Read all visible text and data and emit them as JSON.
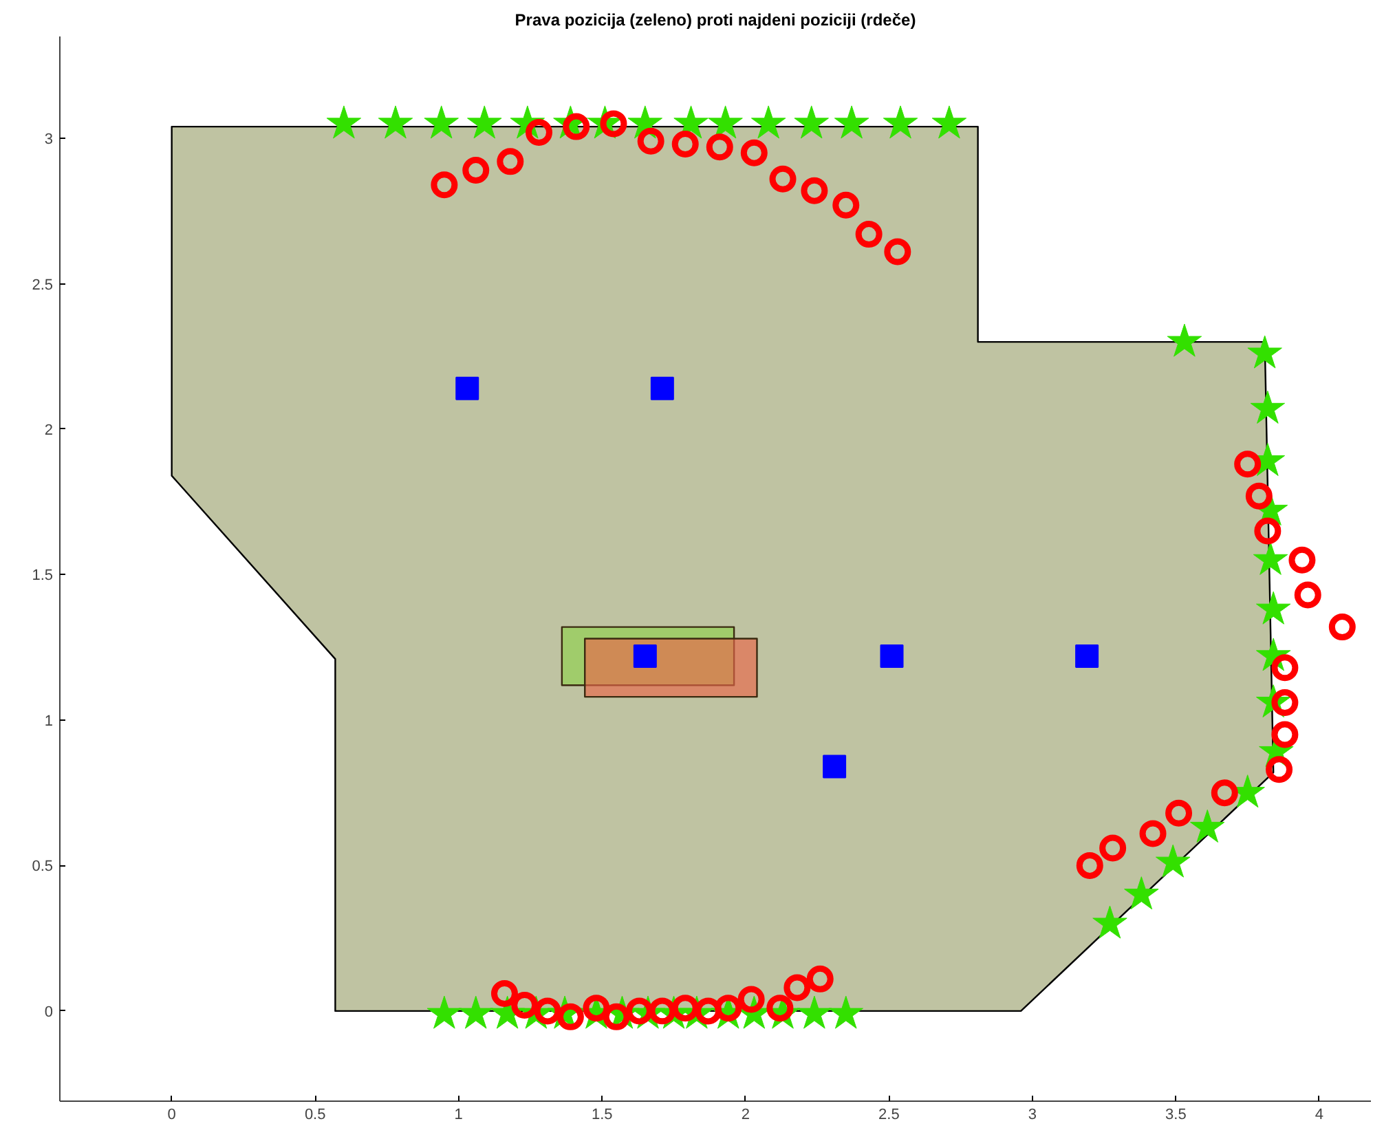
{
  "chart_data": {
    "type": "scatter",
    "title": "Prava pozicija (zeleno) proti najdeni poziciji (rdeče)",
    "xlim": [
      -0.39,
      4.18
    ],
    "ylim": [
      -0.31,
      3.35
    ],
    "xticks": [
      0,
      0.5,
      1,
      1.5,
      2,
      2.5,
      3,
      3.5,
      4
    ],
    "yticks": [
      0,
      0.5,
      1,
      1.5,
      2,
      2.5,
      3
    ],
    "grid": false,
    "series": [
      {
        "type": "area",
        "color": "#bfc3a2",
        "x": [
          0,
          2.81,
          2.81,
          3.81,
          3.84,
          2.96,
          0.57,
          0.57,
          0
        ],
        "values": [
          3.04,
          3.04,
          2.3,
          2.3,
          0.82,
          0,
          0,
          1.21,
          1.84
        ]
      },
      {
        "type": "area",
        "color": "#8fd14f",
        "x": [
          1.36,
          1.96,
          1.96,
          1.36
        ],
        "values": [
          1.32,
          1.32,
          1.12,
          1.12
        ]
      },
      {
        "type": "area",
        "color": "#e8674a",
        "x": [
          1.44,
          2.04,
          2.04,
          1.44
        ],
        "values": [
          1.28,
          1.28,
          1.08,
          1.08
        ]
      },
      {
        "type": "scatter",
        "marker": "square",
        "color": "#0000ff",
        "x": [
          1.03,
          1.71,
          1.65,
          2.51,
          3.19,
          2.31
        ],
        "values": [
          2.14,
          2.14,
          1.22,
          1.22,
          1.22,
          0.84
        ]
      },
      {
        "type": "scatter",
        "marker": "star",
        "color": "#33e000",
        "x": [
          0.6,
          0.78,
          0.94,
          1.09,
          1.24,
          1.39,
          1.51,
          1.65,
          1.81,
          1.93,
          2.08,
          2.23,
          2.37,
          2.54,
          2.71,
          3.53,
          3.81,
          3.82,
          3.82,
          3.83,
          3.83,
          3.84,
          3.84,
          3.84,
          3.85,
          3.75,
          3.61,
          3.49,
          3.38,
          3.27,
          0.95,
          1.06,
          1.17,
          1.27,
          1.37,
          1.48,
          1.57,
          1.66,
          1.75,
          1.83,
          1.94,
          2.03,
          2.13,
          2.24,
          2.35
        ],
        "values": [
          3.05,
          3.05,
          3.05,
          3.05,
          3.05,
          3.05,
          3.05,
          3.05,
          3.05,
          3.05,
          3.05,
          3.05,
          3.05,
          3.05,
          3.05,
          2.3,
          2.26,
          2.07,
          1.89,
          1.72,
          1.55,
          1.38,
          1.22,
          1.06,
          0.89,
          0.75,
          0.63,
          0.51,
          0.4,
          0.3,
          -0.01,
          -0.01,
          -0.01,
          -0.01,
          -0.01,
          -0.01,
          -0.01,
          -0.01,
          -0.01,
          -0.01,
          -0.01,
          -0.01,
          -0.01,
          -0.01,
          -0.01
        ]
      },
      {
        "type": "scatter",
        "marker": "circle",
        "color": "#ff0000",
        "x": [
          0.95,
          1.06,
          1.18,
          1.28,
          1.41,
          1.54,
          1.67,
          1.79,
          1.91,
          2.03,
          2.13,
          2.24,
          2.35,
          2.43,
          2.53,
          3.75,
          3.79,
          3.82,
          3.94,
          3.96,
          4.08,
          3.88,
          3.88,
          3.88,
          3.86,
          3.67,
          3.51,
          3.42,
          3.28,
          3.2,
          1.16,
          1.23,
          1.31,
          1.39,
          1.48,
          1.55,
          1.63,
          1.71,
          1.79,
          1.87,
          1.94,
          2.02,
          2.12,
          2.18,
          2.26
        ],
        "values": [
          2.84,
          2.89,
          2.92,
          3.02,
          3.04,
          3.05,
          2.99,
          2.98,
          2.97,
          2.95,
          2.86,
          2.82,
          2.77,
          2.67,
          2.61,
          1.88,
          1.77,
          1.65,
          1.55,
          1.43,
          1.32,
          1.18,
          1.06,
          0.95,
          0.83,
          0.75,
          0.68,
          0.61,
          0.56,
          0.5,
          0.06,
          0.02,
          0.0,
          -0.02,
          0.01,
          -0.02,
          0.0,
          0.0,
          0.01,
          0.0,
          0.01,
          0.04,
          0.01,
          0.08,
          0.11
        ]
      }
    ]
  }
}
